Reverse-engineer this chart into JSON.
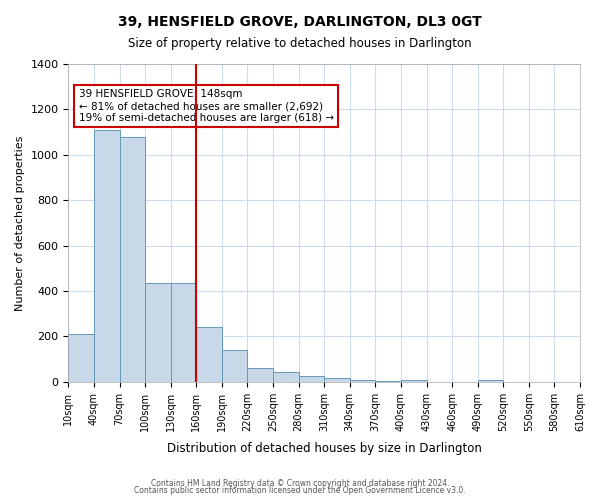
{
  "title": "39, HENSFIELD GROVE, DARLINGTON, DL3 0GT",
  "subtitle": "Size of property relative to detached houses in Darlington",
  "xlabel": "Distribution of detached houses by size in Darlington",
  "ylabel": "Number of detached properties",
  "bar_color": "#c8d8e8",
  "bar_edge_color": "#6699bb",
  "background_color": "#ffffff",
  "grid_color": "#ccddee",
  "annotation_text": "39 HENSFIELD GROVE: 148sqm\n← 81% of detached houses are smaller (2,692)\n19% of semi-detached houses are larger (618) →",
  "annotation_box_color": "#ffffff",
  "annotation_box_edge_color": "#cc0000",
  "vline_x": 5,
  "vline_color": "#cc0000",
  "bin_labels": [
    "10sqm",
    "40sqm",
    "70sqm",
    "100sqm",
    "130sqm",
    "160sqm",
    "190sqm",
    "220sqm",
    "250sqm",
    "280sqm",
    "310sqm",
    "340sqm",
    "370sqm",
    "400sqm",
    "430sqm",
    "460sqm",
    "490sqm",
    "520sqm",
    "550sqm",
    "580sqm",
    "610sqm"
  ],
  "bar_values": [
    210,
    1110,
    1080,
    435,
    435,
    240,
    140,
    60,
    45,
    25,
    15,
    10,
    5,
    10,
    0,
    0,
    10,
    0,
    0,
    0
  ],
  "ylim": [
    0,
    1400
  ],
  "footer1": "Contains HM Land Registry data © Crown copyright and database right 2024.",
  "footer2": "Contains public sector information licensed under the Open Government Licence v3.0."
}
